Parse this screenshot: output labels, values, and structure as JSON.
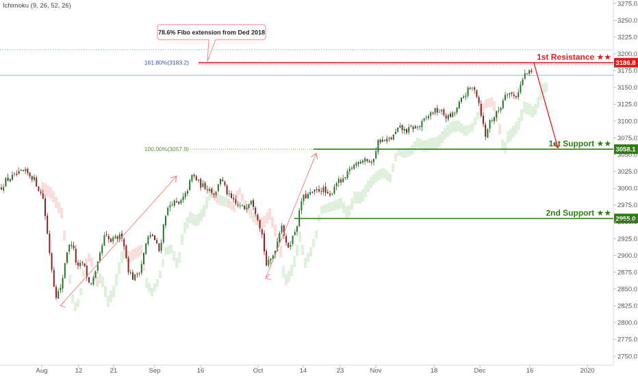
{
  "indicator_label": "Ichimoku (9, 26, 52, 26)",
  "annotation_text": "78.6% Fibo extension from Ded 2018",
  "colors": {
    "resistance": "#e01b1b",
    "support": "#2e7d12",
    "candle_up": "#26732a",
    "candle_down": "#8a1f1f",
    "cloud_green": "#dff0dc",
    "cloud_red": "#f9dede",
    "arrow": "#f0857f",
    "blue_line": "#4a7fd1"
  },
  "chart_data": {
    "type": "candlestick",
    "price_range": [
      2750,
      3275
    ],
    "y_ticks": [
      2750,
      2775,
      2800,
      2825,
      2850,
      2875,
      2900,
      2925,
      2950,
      2975,
      3000,
      3025,
      3050,
      3075,
      3100,
      3125,
      3150,
      3175,
      3200,
      3225,
      3250,
      3275
    ],
    "x_ticks": [
      "Aug",
      "12",
      "21",
      "Sep",
      "16",
      "Oct",
      "14",
      "23",
      "Nov",
      "18",
      "Dec",
      "16",
      "2020"
    ],
    "levels": [
      {
        "label": "1st Resistance ★★",
        "value": 3186.8,
        "tag": "3186.8",
        "kind": "resistance"
      },
      {
        "label": "1st Support ★★",
        "value": 3058.1,
        "tag": "3058.1",
        "kind": "support"
      },
      {
        "label": "2nd Support ★★",
        "value": 2955.0,
        "tag": "2955.0",
        "kind": "support"
      }
    ],
    "fib_labels": [
      {
        "text": "161.80%(3183.2)",
        "value": 3186.8
      },
      {
        "text": "100.00%(3057.9)",
        "value": 3058.1
      }
    ],
    "path_points": [
      [
        0,
        3000
      ],
      [
        8,
        3012
      ],
      [
        20,
        3018
      ],
      [
        35,
        3025
      ],
      [
        48,
        3015
      ],
      [
        62,
        2985
      ],
      [
        72,
        2900
      ],
      [
        80,
        2840
      ],
      [
        88,
        2850
      ],
      [
        96,
        2905
      ],
      [
        104,
        2920
      ],
      [
        112,
        2880
      ],
      [
        120,
        2890
      ],
      [
        130,
        2855
      ],
      [
        138,
        2870
      ],
      [
        146,
        2905
      ],
      [
        152,
        2930
      ],
      [
        160,
        2920
      ],
      [
        168,
        2925
      ],
      [
        178,
        2930
      ],
      [
        186,
        2880
      ],
      [
        194,
        2865
      ],
      [
        204,
        2880
      ],
      [
        214,
        2925
      ],
      [
        222,
        2930
      ],
      [
        232,
        2905
      ],
      [
        240,
        2960
      ],
      [
        250,
        2980
      ],
      [
        260,
        2975
      ],
      [
        270,
        2990
      ],
      [
        280,
        3020
      ],
      [
        292,
        3005
      ],
      [
        304,
        3000
      ],
      [
        314,
        2990
      ],
      [
        320,
        3018
      ],
      [
        332,
        2990
      ],
      [
        344,
        2975
      ],
      [
        356,
        2970
      ],
      [
        366,
        2985
      ],
      [
        376,
        2955
      ],
      [
        382,
        2930
      ],
      [
        388,
        2885
      ],
      [
        396,
        2895
      ],
      [
        404,
        2920
      ],
      [
        410,
        2950
      ],
      [
        418,
        2910
      ],
      [
        426,
        2925
      ],
      [
        434,
        2950
      ],
      [
        440,
        2985
      ],
      [
        450,
        2990
      ],
      [
        460,
        2995
      ],
      [
        470,
        3000
      ],
      [
        480,
        2985
      ],
      [
        490,
        3010
      ],
      [
        500,
        3010
      ],
      [
        512,
        3030
      ],
      [
        522,
        3040
      ],
      [
        532,
        3045
      ],
      [
        542,
        3035
      ],
      [
        552,
        3072
      ],
      [
        562,
        3070
      ],
      [
        572,
        3075
      ],
      [
        582,
        3090
      ],
      [
        592,
        3085
      ],
      [
        602,
        3090
      ],
      [
        612,
        3092
      ],
      [
        622,
        3105
      ],
      [
        632,
        3115
      ],
      [
        642,
        3115
      ],
      [
        652,
        3105
      ],
      [
        662,
        3110
      ],
      [
        672,
        3130
      ],
      [
        682,
        3145
      ],
      [
        692,
        3150
      ],
      [
        698,
        3130
      ],
      [
        704,
        3100
      ],
      [
        708,
        3075
      ],
      [
        714,
        3100
      ],
      [
        720,
        3105
      ],
      [
        730,
        3120
      ],
      [
        738,
        3145
      ],
      [
        746,
        3140
      ],
      [
        752,
        3135
      ],
      [
        760,
        3155
      ],
      [
        766,
        3170
      ],
      [
        774,
        3172
      ]
    ],
    "arrows": [
      {
        "from": [
          88,
          2825
        ],
        "to": [
          258,
          3018
        ]
      },
      {
        "from": [
          388,
          2866
        ],
        "to": [
          462,
          3052
        ]
      },
      {
        "from": [
          780,
          3186
        ],
        "to": [
          815,
          3060
        ]
      }
    ],
    "marker_lines": [
      {
        "value": 3206,
        "style": "dotted"
      },
      {
        "value": 3168,
        "style": "solid"
      }
    ]
  }
}
